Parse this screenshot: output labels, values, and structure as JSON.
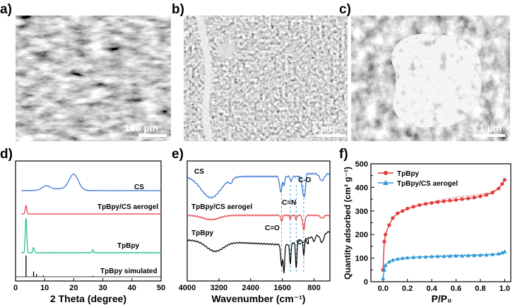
{
  "panel_labels": [
    "a)",
    "b)",
    "c)",
    "d)",
    "e)",
    "f)"
  ],
  "sem": [
    {
      "scale_label": "100 µm"
    },
    {
      "scale_label": "5 µm"
    },
    {
      "scale_label": "1 µm"
    }
  ],
  "chart_data": [
    {
      "type": "line",
      "panel": "d",
      "xlabel": "2 Theta (degree)",
      "xlim": [
        0,
        50
      ],
      "xticks": [
        0,
        10,
        20,
        30,
        40,
        50
      ],
      "series": [
        {
          "name": "CS",
          "color": "#2e6fce",
          "peaks": [
            {
              "x": 10.5,
              "h": 0.25
            },
            {
              "x": 20.0,
              "h": 1.0
            }
          ],
          "baseline": 0.05
        },
        {
          "name": "TpBpy/CS aerogel",
          "color": "#e33b3b",
          "peaks": [
            {
              "x": 3.6,
              "h": 1.0
            }
          ],
          "baseline": 0.0
        },
        {
          "name": "TpBpy",
          "color": "#1dbf7f",
          "peaks": [
            {
              "x": 3.6,
              "h": 1.0
            },
            {
              "x": 6.2,
              "h": 0.15
            },
            {
              "x": 26.5,
              "h": 0.08
            }
          ],
          "baseline": 0.0
        },
        {
          "name": "TpBpy simulated",
          "color": "#000000",
          "sticks": [
            {
              "x": 3.6,
              "h": 1.0
            },
            {
              "x": 6.2,
              "h": 0.25
            },
            {
              "x": 7.2,
              "h": 0.12
            },
            {
              "x": 9.5,
              "h": 0.06
            },
            {
              "x": 26.5,
              "h": 0.04
            }
          ]
        }
      ]
    },
    {
      "type": "line",
      "panel": "e",
      "xlabel": "Wavenumber (cm⁻¹)",
      "xlim": [
        4000,
        400
      ],
      "xticks": [
        4000,
        3200,
        2400,
        1600,
        800
      ],
      "annotations": [
        "C=O",
        "C=N",
        "C-O",
        "C-N"
      ],
      "marker_lines": [
        1620,
        1400,
        1250,
        1060
      ],
      "series": [
        {
          "name": "CS",
          "color": "#2e6fce"
        },
        {
          "name": "TpBpy/CS aerogel",
          "color": "#e33b3b"
        },
        {
          "name": "TpBpy",
          "color": "#000000"
        }
      ]
    },
    {
      "type": "line",
      "panel": "f",
      "xlabel": "P/P₀",
      "ylabel": "Quantity adsorbed (cm³ g⁻¹)",
      "xlim": [
        -0.1,
        1.05
      ],
      "ylim": [
        0,
        500
      ],
      "xticks": [
        0.0,
        0.2,
        0.4,
        0.6,
        0.8,
        1.0
      ],
      "yticks": [
        0,
        50,
        100,
        150,
        200,
        250,
        300,
        350,
        400,
        450,
        500
      ],
      "legend": "top-left",
      "series": [
        {
          "name": "TpBpy",
          "color": "#e33b3b",
          "x": [
            0.0,
            0.01,
            0.02,
            0.05,
            0.08,
            0.12,
            0.16,
            0.2,
            0.25,
            0.3,
            0.35,
            0.4,
            0.45,
            0.5,
            0.55,
            0.6,
            0.65,
            0.7,
            0.75,
            0.8,
            0.85,
            0.9,
            0.95,
            0.98,
            1.0
          ],
          "y": [
            50,
            170,
            200,
            240,
            270,
            290,
            300,
            310,
            318,
            325,
            330,
            334,
            338,
            341,
            344,
            347,
            350,
            353,
            357,
            362,
            368,
            378,
            395,
            415,
            432
          ]
        },
        {
          "name": "TpBpy/CS aerogel",
          "color": "#2e9ad6",
          "x": [
            0.0,
            0.01,
            0.02,
            0.05,
            0.08,
            0.12,
            0.16,
            0.2,
            0.25,
            0.3,
            0.35,
            0.4,
            0.45,
            0.5,
            0.55,
            0.6,
            0.65,
            0.7,
            0.75,
            0.8,
            0.85,
            0.9,
            0.95,
            0.98,
            1.0
          ],
          "y": [
            15,
            50,
            70,
            85,
            92,
            97,
            100,
            102,
            104,
            105,
            106,
            107,
            108,
            108,
            109,
            110,
            110,
            111,
            112,
            113,
            114,
            116,
            119,
            123,
            128
          ]
        }
      ]
    }
  ]
}
